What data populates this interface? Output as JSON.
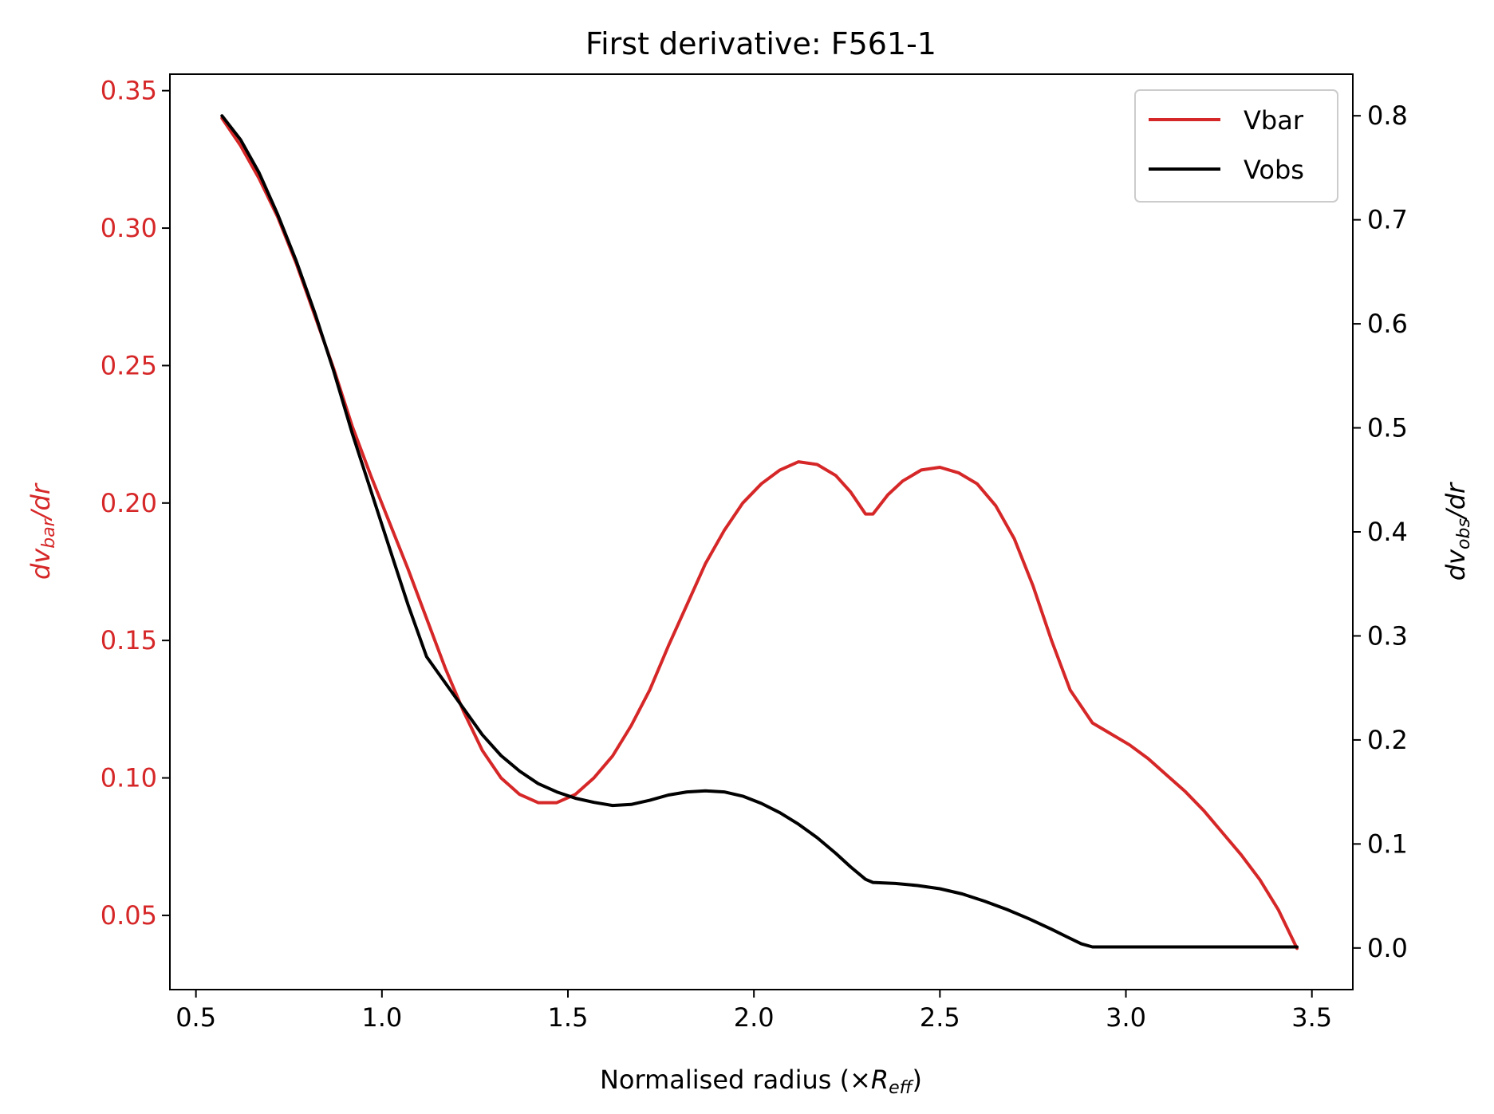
{
  "chart_data": {
    "type": "line",
    "title": "First derivative: F561-1",
    "xlabel": {
      "prefix": "Normalised radius (×",
      "var": "R",
      "sub": "eff",
      "suffix": ")"
    },
    "ylabel_left": {
      "d": "dv",
      "sub": "bar",
      "rest": "/dr"
    },
    "ylabel_right": {
      "d": "dv",
      "sub": "obs",
      "rest": "/dr"
    },
    "xlim": [
      0.43,
      3.61
    ],
    "ylim_left": [
      0.023,
      0.356
    ],
    "ylim_right": [
      -0.04,
      0.84
    ],
    "x_ticks": [
      "0.5",
      "1.0",
      "1.5",
      "2.0",
      "2.5",
      "3.0",
      "3.5"
    ],
    "x_tick_values": [
      0.5,
      1.0,
      1.5,
      2.0,
      2.5,
      3.0,
      3.5
    ],
    "y_left_ticks": [
      "0.05",
      "0.10",
      "0.15",
      "0.20",
      "0.25",
      "0.30",
      "0.35"
    ],
    "y_left_tick_values": [
      0.05,
      0.1,
      0.15,
      0.2,
      0.25,
      0.3,
      0.35
    ],
    "y_right_ticks": [
      "0.0",
      "0.1",
      "0.2",
      "0.3",
      "0.4",
      "0.5",
      "0.6",
      "0.7",
      "0.8"
    ],
    "y_right_tick_values": [
      0.0,
      0.1,
      0.2,
      0.3,
      0.4,
      0.5,
      0.6,
      0.7,
      0.8
    ],
    "grid": false,
    "legend_position": "top-right",
    "colors": {
      "left_axis": "#d62728",
      "vbar": "#d62728",
      "vobs": "#000000"
    },
    "series": [
      {
        "name": "Vbar",
        "axis": "left",
        "color": "#d62728",
        "x": [
          0.57,
          0.62,
          0.67,
          0.72,
          0.77,
          0.82,
          0.87,
          0.92,
          0.97,
          1.02,
          1.07,
          1.12,
          1.17,
          1.22,
          1.27,
          1.32,
          1.37,
          1.42,
          1.47,
          1.52,
          1.57,
          1.62,
          1.67,
          1.72,
          1.77,
          1.82,
          1.87,
          1.92,
          1.97,
          2.02,
          2.07,
          2.12,
          2.17,
          2.22,
          2.26,
          2.3,
          2.32,
          2.36,
          2.4,
          2.45,
          2.5,
          2.55,
          2.6,
          2.65,
          2.7,
          2.75,
          2.8,
          2.85,
          2.88,
          2.91,
          2.96,
          3.01,
          3.06,
          3.11,
          3.16,
          3.21,
          3.26,
          3.31,
          3.36,
          3.41,
          3.46
        ],
        "values": [
          0.34,
          0.33,
          0.318,
          0.304,
          0.287,
          0.268,
          0.249,
          0.228,
          0.21,
          0.193,
          0.176,
          0.158,
          0.14,
          0.124,
          0.11,
          0.1,
          0.094,
          0.091,
          0.091,
          0.094,
          0.1,
          0.108,
          0.119,
          0.132,
          0.148,
          0.163,
          0.178,
          0.19,
          0.2,
          0.207,
          0.212,
          0.215,
          0.214,
          0.21,
          0.204,
          0.196,
          0.196,
          0.203,
          0.208,
          0.212,
          0.213,
          0.211,
          0.207,
          0.199,
          0.187,
          0.17,
          0.15,
          0.132,
          0.126,
          0.12,
          0.116,
          0.112,
          0.107,
          0.101,
          0.095,
          0.088,
          0.08,
          0.072,
          0.063,
          0.052,
          0.038
        ]
      },
      {
        "name": "Vobs",
        "axis": "right",
        "color": "#000000",
        "x": [
          0.57,
          0.62,
          0.67,
          0.72,
          0.77,
          0.82,
          0.87,
          0.92,
          0.97,
          1.02,
          1.07,
          1.12,
          1.16,
          1.22,
          1.27,
          1.32,
          1.37,
          1.42,
          1.47,
          1.52,
          1.57,
          1.62,
          1.67,
          1.72,
          1.77,
          1.82,
          1.87,
          1.92,
          1.97,
          2.02,
          2.07,
          2.12,
          2.17,
          2.22,
          2.26,
          2.3,
          2.32,
          2.38,
          2.44,
          2.5,
          2.56,
          2.62,
          2.68,
          2.74,
          2.8,
          2.84,
          2.88,
          2.91,
          3.0,
          3.1,
          3.2,
          3.3,
          3.4,
          3.46
        ],
        "values": [
          0.8,
          0.777,
          0.745,
          0.705,
          0.66,
          0.61,
          0.555,
          0.495,
          0.44,
          0.385,
          0.33,
          0.28,
          0.26,
          0.23,
          0.205,
          0.185,
          0.17,
          0.158,
          0.15,
          0.144,
          0.14,
          0.137,
          0.138,
          0.142,
          0.147,
          0.15,
          0.151,
          0.15,
          0.146,
          0.139,
          0.13,
          0.119,
          0.106,
          0.091,
          0.078,
          0.066,
          0.063,
          0.062,
          0.06,
          0.057,
          0.052,
          0.045,
          0.037,
          0.028,
          0.018,
          0.011,
          0.004,
          0.001,
          0.001,
          0.001,
          0.001,
          0.001,
          0.001,
          0.001
        ]
      }
    ]
  }
}
